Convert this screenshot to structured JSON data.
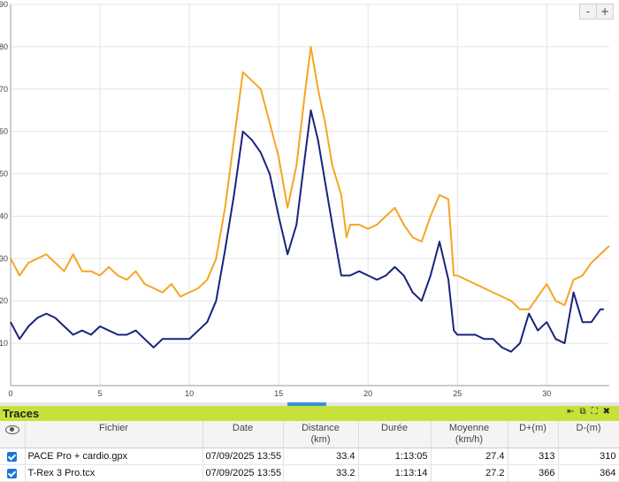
{
  "chart_data": {
    "type": "line",
    "xlim": [
      0,
      33.5
    ],
    "ylim": [
      0,
      90
    ],
    "x_ticks": [
      "0",
      "5",
      "10",
      "15",
      "20",
      "25",
      "30"
    ],
    "y_ticks": [
      "10",
      "20",
      "30",
      "40",
      "50",
      "60",
      "70",
      "80",
      "90"
    ],
    "grid": true,
    "series": [
      {
        "color": "#f5a623",
        "points": [
          [
            0,
            30
          ],
          [
            0.5,
            26
          ],
          [
            1,
            29
          ],
          [
            1.5,
            30
          ],
          [
            2,
            31
          ],
          [
            2.5,
            29
          ],
          [
            3,
            27
          ],
          [
            3.5,
            31
          ],
          [
            4,
            27
          ],
          [
            4.5,
            27
          ],
          [
            5,
            26
          ],
          [
            5.5,
            28
          ],
          [
            6,
            26
          ],
          [
            6.5,
            25
          ],
          [
            7,
            27
          ],
          [
            7.5,
            24
          ],
          [
            8,
            23
          ],
          [
            8.5,
            22
          ],
          [
            9,
            24
          ],
          [
            9.5,
            21
          ],
          [
            10,
            22
          ],
          [
            10.5,
            23
          ],
          [
            11,
            25
          ],
          [
            11.5,
            30
          ],
          [
            12,
            42
          ],
          [
            12.5,
            58
          ],
          [
            13,
            74
          ],
          [
            13.5,
            72
          ],
          [
            14,
            70
          ],
          [
            14.5,
            62
          ],
          [
            15,
            54
          ],
          [
            15.5,
            42
          ],
          [
            16,
            52
          ],
          [
            16.5,
            70
          ],
          [
            16.8,
            80
          ],
          [
            17.2,
            70
          ],
          [
            17.6,
            62
          ],
          [
            18,
            52
          ],
          [
            18.5,
            45
          ],
          [
            18.8,
            35
          ],
          [
            19,
            38
          ],
          [
            19.5,
            38
          ],
          [
            20,
            37
          ],
          [
            20.5,
            38
          ],
          [
            21,
            40
          ],
          [
            21.5,
            42
          ],
          [
            22,
            38
          ],
          [
            22.5,
            35
          ],
          [
            23,
            34
          ],
          [
            23.5,
            40
          ],
          [
            24,
            45
          ],
          [
            24.5,
            44
          ],
          [
            24.8,
            26
          ],
          [
            25,
            26
          ],
          [
            25.5,
            25
          ],
          [
            26,
            24
          ],
          [
            26.5,
            23
          ],
          [
            27,
            22
          ],
          [
            27.5,
            21
          ],
          [
            28,
            20
          ],
          [
            28.5,
            18
          ],
          [
            29,
            18
          ],
          [
            29.5,
            21
          ],
          [
            30,
            24
          ],
          [
            30.5,
            20
          ],
          [
            31,
            19
          ],
          [
            31.5,
            25
          ],
          [
            32,
            26
          ],
          [
            32.5,
            29
          ],
          [
            33,
            31
          ],
          [
            33.5,
            33
          ]
        ]
      },
      {
        "color": "#1a237e",
        "points": [
          [
            0,
            15
          ],
          [
            0.5,
            11
          ],
          [
            1,
            14
          ],
          [
            1.5,
            16
          ],
          [
            2,
            17
          ],
          [
            2.5,
            16
          ],
          [
            3,
            14
          ],
          [
            3.5,
            12
          ],
          [
            4,
            13
          ],
          [
            4.5,
            12
          ],
          [
            5,
            14
          ],
          [
            5.5,
            13
          ],
          [
            6,
            12
          ],
          [
            6.5,
            12
          ],
          [
            7,
            13
          ],
          [
            7.5,
            11
          ],
          [
            8,
            9
          ],
          [
            8.5,
            11
          ],
          [
            9,
            11
          ],
          [
            9.5,
            11
          ],
          [
            10,
            11
          ],
          [
            10.5,
            13
          ],
          [
            11,
            15
          ],
          [
            11.5,
            20
          ],
          [
            12,
            32
          ],
          [
            12.5,
            45
          ],
          [
            13,
            60
          ],
          [
            13.5,
            58
          ],
          [
            14,
            55
          ],
          [
            14.5,
            50
          ],
          [
            15,
            40
          ],
          [
            15.5,
            31
          ],
          [
            16,
            38
          ],
          [
            16.5,
            55
          ],
          [
            16.8,
            65
          ],
          [
            17.2,
            58
          ],
          [
            17.6,
            48
          ],
          [
            18,
            38
          ],
          [
            18.5,
            26
          ],
          [
            19,
            26
          ],
          [
            19.5,
            27
          ],
          [
            20,
            26
          ],
          [
            20.5,
            25
          ],
          [
            21,
            26
          ],
          [
            21.5,
            28
          ],
          [
            22,
            26
          ],
          [
            22.5,
            22
          ],
          [
            23,
            20
          ],
          [
            23.5,
            26
          ],
          [
            24,
            34
          ],
          [
            24.5,
            25
          ],
          [
            24.8,
            13
          ],
          [
            25,
            12
          ],
          [
            25.5,
            12
          ],
          [
            26,
            12
          ],
          [
            26.5,
            11
          ],
          [
            27,
            11
          ],
          [
            27.5,
            9
          ],
          [
            28,
            8
          ],
          [
            28.5,
            10
          ],
          [
            29,
            17
          ],
          [
            29.5,
            13
          ],
          [
            30,
            15
          ],
          [
            30.5,
            11
          ],
          [
            31,
            10
          ],
          [
            31.5,
            22
          ],
          [
            32,
            15
          ],
          [
            32.5,
            15
          ],
          [
            33,
            18
          ],
          [
            33.2,
            18
          ]
        ]
      }
    ]
  },
  "zoom": {
    "minus": "-",
    "plus": "+"
  },
  "panel": {
    "title": "Traces",
    "icons": {
      "collapse": "⇤",
      "restore": "⧉",
      "expand": "⛶",
      "close": "✖"
    },
    "columns": {
      "file": "Fichier",
      "date": "Date",
      "distance": "Distance",
      "distance_unit": "(km)",
      "duration": "Durée",
      "average": "Moyenne",
      "average_unit": "(km/h)",
      "dplus": "D+(m)",
      "dminus": "D-(m)"
    },
    "rows": [
      {
        "file": "PACE Pro + cardio.gpx",
        "date": "07/09/2025 13:55",
        "distance": "33.4",
        "duration": "1:13:05",
        "average": "27.4",
        "dplus": "313",
        "dminus": "310"
      },
      {
        "file": "T-Rex 3 Pro.tcx",
        "date": "07/09/2025 13:55",
        "distance": "33.2",
        "duration": "1:13:14",
        "average": "27.2",
        "dplus": "366",
        "dminus": "364"
      }
    ]
  }
}
